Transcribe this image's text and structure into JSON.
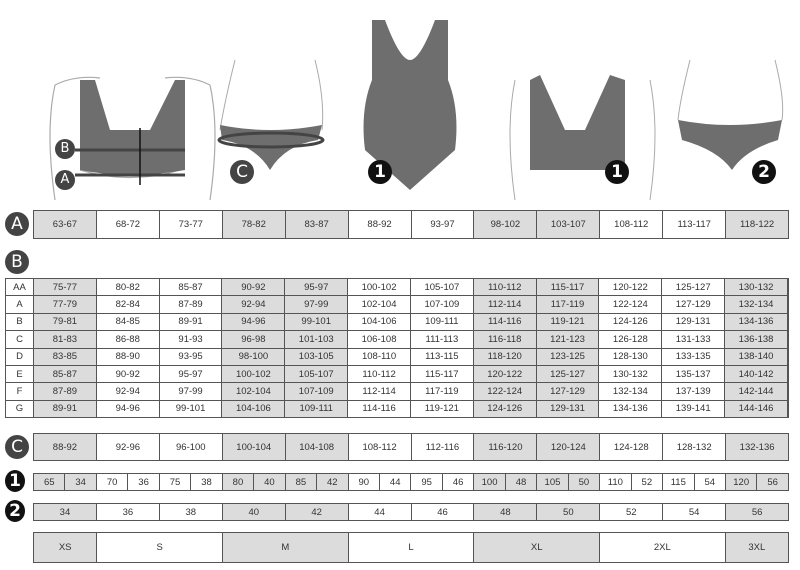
{
  "figures": {
    "markers": [
      "A",
      "B",
      "C",
      "1",
      "2"
    ]
  },
  "badges": {
    "A": "A",
    "B": "B",
    "C": "C",
    "one": "1",
    "two": "2"
  },
  "shaded_columns": [
    0,
    3,
    4,
    7,
    8,
    11
  ],
  "colors": {
    "shade": "#dcdcdc",
    "border": "#555555",
    "figure": "#6e6e6e"
  },
  "underbust_A": [
    "63-67",
    "68-72",
    "73-77",
    "78-82",
    "83-87",
    "88-92",
    "93-97",
    "98-102",
    "103-107",
    "108-112",
    "113-117",
    "118-122"
  ],
  "bust_B": {
    "rows": [
      {
        "cup": "AA",
        "values": [
          "75-77",
          "80-82",
          "85-87",
          "90-92",
          "95-97",
          "100-102",
          "105-107",
          "110-112",
          "115-117",
          "120-122",
          "125-127",
          "130-132"
        ]
      },
      {
        "cup": "A",
        "values": [
          "77-79",
          "82-84",
          "87-89",
          "92-94",
          "97-99",
          "102-104",
          "107-109",
          "112-114",
          "117-119",
          "122-124",
          "127-129",
          "132-134"
        ]
      },
      {
        "cup": "B",
        "values": [
          "79-81",
          "84-85",
          "89-91",
          "94-96",
          "99-101",
          "104-106",
          "109-111",
          "114-116",
          "119-121",
          "124-126",
          "129-131",
          "134-136"
        ]
      },
      {
        "cup": "C",
        "values": [
          "81-83",
          "86-88",
          "91-93",
          "96-98",
          "101-103",
          "106-108",
          "111-113",
          "116-118",
          "121-123",
          "126-128",
          "131-133",
          "136-138"
        ]
      },
      {
        "cup": "D",
        "values": [
          "83-85",
          "88-90",
          "93-95",
          "98-100",
          "103-105",
          "108-110",
          "113-115",
          "118-120",
          "123-125",
          "128-130",
          "133-135",
          "138-140"
        ]
      },
      {
        "cup": "E",
        "values": [
          "85-87",
          "90-92",
          "95-97",
          "100-102",
          "105-107",
          "110-112",
          "115-117",
          "120-122",
          "125-127",
          "130-132",
          "135-137",
          "140-142"
        ]
      },
      {
        "cup": "F",
        "values": [
          "87-89",
          "92-94",
          "97-99",
          "102-104",
          "107-109",
          "112-114",
          "117-119",
          "122-124",
          "127-129",
          "132-134",
          "137-139",
          "142-144"
        ]
      },
      {
        "cup": "G",
        "values": [
          "89-91",
          "94-96",
          "99-101",
          "104-106",
          "109-111",
          "114-116",
          "119-121",
          "124-126",
          "129-131",
          "134-136",
          "139-141",
          "144-146"
        ]
      }
    ]
  },
  "hips_C": [
    "88-92",
    "92-96",
    "96-100",
    "100-104",
    "104-108",
    "108-112",
    "112-116",
    "116-120",
    "120-124",
    "124-128",
    "128-132",
    "132-136"
  ],
  "size_1": [
    [
      "65",
      "34"
    ],
    [
      "70",
      "36"
    ],
    [
      "75",
      "38"
    ],
    [
      "80",
      "40"
    ],
    [
      "85",
      "42"
    ],
    [
      "90",
      "44"
    ],
    [
      "95",
      "46"
    ],
    [
      "100",
      "48"
    ],
    [
      "105",
      "50"
    ],
    [
      "110",
      "52"
    ],
    [
      "115",
      "54"
    ],
    [
      "120",
      "56"
    ]
  ],
  "size_2": [
    "34",
    "36",
    "38",
    "40",
    "42",
    "44",
    "46",
    "48",
    "50",
    "52",
    "54",
    "56"
  ],
  "letter_sizes": [
    {
      "label": "XS",
      "span": 1
    },
    {
      "label": "S",
      "span": 2
    },
    {
      "label": "M",
      "span": 2
    },
    {
      "label": "L",
      "span": 2
    },
    {
      "label": "XL",
      "span": 2
    },
    {
      "label": "2XL",
      "span": 2
    },
    {
      "label": "3XL",
      "span": 1
    }
  ]
}
